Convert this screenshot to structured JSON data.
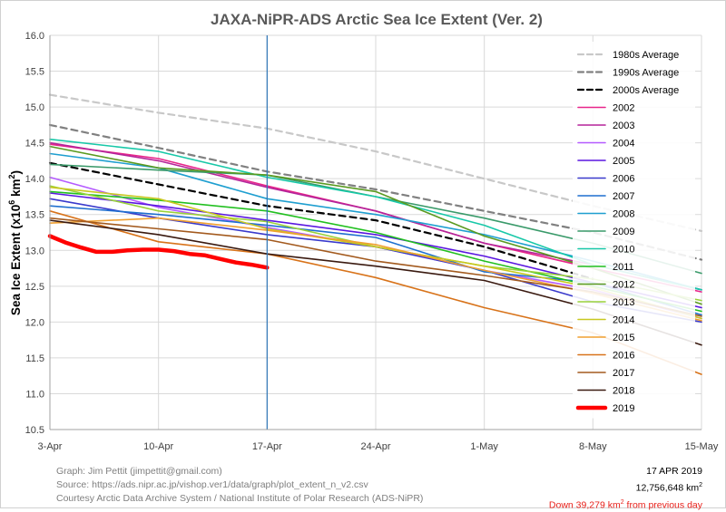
{
  "chart_data": {
    "type": "line",
    "title": "JAXA-NiPR-ADS Arctic Sea Ice Extent (Ver. 2)",
    "ylabel_prefix": "Sea Ice Extent (x10",
    "ylabel_exp": "6",
    "ylabel_mid": " km",
    "ylabel_exp2": "2",
    "ylabel_suffix": ")",
    "ylim": [
      10.5,
      16.0
    ],
    "yticks": [
      "10.5",
      "11.0",
      "11.5",
      "12.0",
      "12.5",
      "13.0",
      "13.5",
      "14.0",
      "14.5",
      "15.0",
      "15.5",
      "16.0"
    ],
    "xlim": [
      0,
      42
    ],
    "xticks": [
      {
        "day": 0,
        "label": "3-Apr"
      },
      {
        "day": 7,
        "label": "10-Apr"
      },
      {
        "day": 14,
        "label": "17-Apr"
      },
      {
        "day": 21,
        "label": "24-Apr"
      },
      {
        "day": 28,
        "label": "1-May"
      },
      {
        "day": 35,
        "label": "8-May"
      },
      {
        "day": 42,
        "label": "15-May"
      }
    ],
    "current_day_marker": 14,
    "legend_position": "top-right",
    "series": [
      {
        "name": "1980s Average",
        "color": "#c8c8c8",
        "dash": "dash",
        "width": 2.2,
        "x": [
          0,
          7,
          14,
          21,
          28,
          35,
          42
        ],
        "y": [
          15.17,
          14.92,
          14.7,
          14.38,
          14.0,
          13.62,
          13.27
        ]
      },
      {
        "name": "1990s Average",
        "color": "#808080",
        "dash": "dash",
        "width": 2.2,
        "x": [
          0,
          7,
          14,
          21,
          28,
          35,
          42
        ],
        "y": [
          14.75,
          14.43,
          14.1,
          13.85,
          13.55,
          13.25,
          12.87
        ]
      },
      {
        "name": "2000s Average",
        "color": "#000000",
        "dash": "dash",
        "width": 2.2,
        "x": [
          0,
          7,
          14,
          21,
          28,
          35
        ],
        "y": [
          14.22,
          13.92,
          13.62,
          13.42,
          13.05,
          12.6
        ]
      },
      {
        "name": "2002",
        "color": "#e8258a",
        "dash": "",
        "width": 1.6,
        "x": [
          0,
          7,
          14,
          21,
          28,
          35,
          42
        ],
        "y": [
          14.48,
          14.28,
          13.9,
          13.55,
          13.1,
          12.75,
          12.42
        ]
      },
      {
        "name": "2003",
        "color": "#b5249a",
        "dash": "",
        "width": 1.6,
        "x": [
          0,
          7,
          14,
          21,
          28,
          35,
          42
        ],
        "y": [
          14.5,
          14.25,
          13.88,
          13.55,
          13.1,
          12.8,
          12.45
        ]
      },
      {
        "name": "2004",
        "color": "#b45aff",
        "dash": "",
        "width": 1.6,
        "x": [
          0,
          7,
          14,
          21,
          28,
          35,
          42
        ],
        "y": [
          14.02,
          13.6,
          13.32,
          13.05,
          12.72,
          12.45,
          12.05
        ]
      },
      {
        "name": "2005",
        "color": "#5a17e0",
        "dash": "",
        "width": 1.6,
        "x": [
          0,
          7,
          14,
          21,
          28,
          35,
          42
        ],
        "y": [
          13.8,
          13.62,
          13.42,
          13.22,
          12.92,
          12.55,
          12.2
        ]
      },
      {
        "name": "2006",
        "color": "#3a3acc",
        "dash": "",
        "width": 1.6,
        "x": [
          0,
          7,
          14,
          21,
          28,
          35,
          42
        ],
        "y": [
          13.72,
          13.45,
          13.22,
          13.05,
          12.72,
          12.28,
          12.0
        ]
      },
      {
        "name": "2007",
        "color": "#1f6fcf",
        "dash": "",
        "width": 1.6,
        "x": [
          0,
          7,
          14,
          21,
          28,
          35,
          42
        ],
        "y": [
          13.62,
          13.5,
          13.35,
          13.18,
          12.7,
          12.55,
          12.1
        ]
      },
      {
        "name": "2008",
        "color": "#1f9fd0",
        "dash": "",
        "width": 1.6,
        "x": [
          0,
          7,
          14,
          21,
          28,
          35,
          42
        ],
        "y": [
          14.35,
          14.15,
          13.72,
          13.5,
          13.22,
          12.85,
          12.45
        ]
      },
      {
        "name": "2009",
        "color": "#3a9a6a",
        "dash": "",
        "width": 1.6,
        "x": [
          0,
          7,
          14,
          21,
          28,
          35,
          42
        ],
        "y": [
          14.2,
          14.12,
          14.05,
          13.75,
          13.45,
          13.1,
          12.68
        ]
      },
      {
        "name": "2010",
        "color": "#18c8a8",
        "dash": "",
        "width": 1.6,
        "x": [
          0,
          7,
          14,
          21,
          28,
          35,
          42
        ],
        "y": [
          14.55,
          14.38,
          14.02,
          13.75,
          13.35,
          12.8,
          12.45
        ]
      },
      {
        "name": "2011",
        "color": "#22c020",
        "dash": "",
        "width": 1.6,
        "x": [
          0,
          7,
          14,
          21,
          28,
          35,
          42
        ],
        "y": [
          13.82,
          13.7,
          13.55,
          13.25,
          12.85,
          12.5,
          12.15
        ]
      },
      {
        "name": "2012",
        "color": "#5a9a20",
        "dash": "",
        "width": 1.6,
        "x": [
          0,
          7,
          14,
          21,
          28,
          35,
          42
        ],
        "y": [
          14.45,
          14.15,
          14.05,
          13.82,
          13.2,
          12.75,
          12.25
        ]
      },
      {
        "name": "2013",
        "color": "#9ad23a",
        "dash": "",
        "width": 1.6,
        "x": [
          0,
          7,
          14,
          21,
          28,
          35,
          42
        ],
        "y": [
          13.9,
          13.55,
          13.4,
          13.05,
          12.78,
          12.6,
          12.3
        ]
      },
      {
        "name": "2014",
        "color": "#c8c820",
        "dash": "",
        "width": 1.6,
        "x": [
          0,
          7,
          14,
          21,
          28,
          35,
          42
        ],
        "y": [
          13.88,
          13.72,
          13.3,
          13.05,
          12.78,
          12.48,
          12.05
        ]
      },
      {
        "name": "2015",
        "color": "#f0a030",
        "dash": "",
        "width": 1.6,
        "x": [
          0,
          7,
          14,
          21,
          28,
          35,
          42
        ],
        "y": [
          13.38,
          13.45,
          13.28,
          13.08,
          12.72,
          12.4,
          12.02
        ]
      },
      {
        "name": "2016",
        "color": "#d8731a",
        "dash": "",
        "width": 1.6,
        "x": [
          0,
          7,
          14,
          21,
          28,
          35,
          42
        ],
        "y": [
          13.55,
          13.12,
          12.95,
          12.62,
          12.2,
          11.85,
          11.27
        ]
      },
      {
        "name": "2017",
        "color": "#a35a1e",
        "dash": "",
        "width": 1.6,
        "x": [
          0,
          7,
          14,
          21,
          28,
          35,
          42
        ],
        "y": [
          13.45,
          13.3,
          13.15,
          12.85,
          12.65,
          12.42,
          12.08
        ]
      },
      {
        "name": "2018",
        "color": "#3a1a10",
        "dash": "",
        "width": 1.6,
        "x": [
          0,
          7,
          14,
          21,
          28,
          35,
          42
        ],
        "y": [
          13.42,
          13.22,
          12.95,
          12.78,
          12.58,
          12.18,
          11.68
        ]
      },
      {
        "name": "2019",
        "color": "#ff0000",
        "dash": "",
        "width": 4.5,
        "x": [
          0,
          1,
          2,
          3,
          4,
          5,
          6,
          7,
          8,
          9,
          10,
          11,
          12,
          13,
          14
        ],
        "y": [
          13.2,
          13.11,
          13.04,
          12.98,
          12.98,
          13.0,
          13.01,
          13.01,
          12.99,
          12.95,
          12.93,
          12.88,
          12.83,
          12.8,
          12.76
        ]
      }
    ]
  },
  "footer": {
    "credit_1": "Graph: Jim Pettit (jimpettit@gmail.com)",
    "credit_2": "Source: https://ads.nipr.ac.jp/vishop.ver1/data/graph/plot_extent_n_v2.csv",
    "credit_3": "Courtesy Arctic Data Archive System / National Institute of Polar Research (ADS-NiPR)",
    "date": "17 APR 2019",
    "extent_value": "12,756,648 km",
    "extent_exp": "2",
    "change_value": "Down 39,279 km",
    "change_exp": "2",
    "change_suffix": " from previous day"
  }
}
